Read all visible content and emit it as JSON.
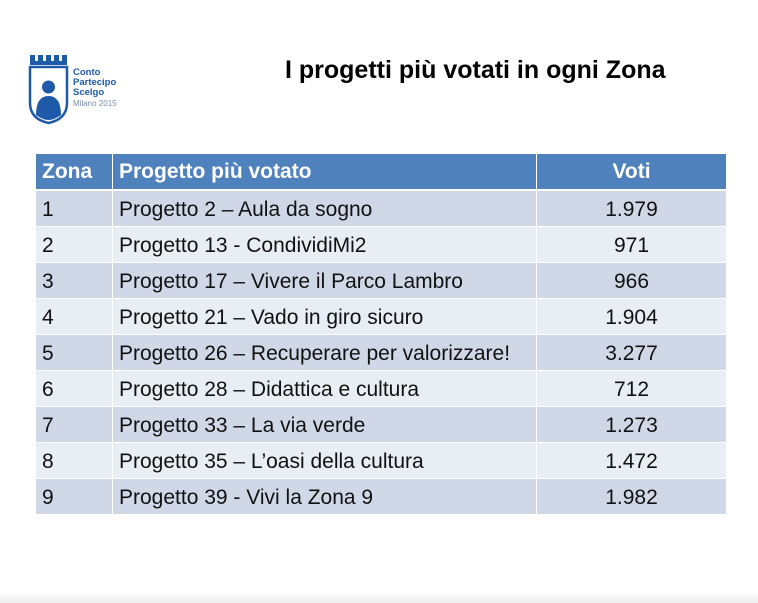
{
  "logo": {
    "line1": "Conto",
    "line2": "Partecipo",
    "line3": "Scelgo",
    "line4": "Milano 2015",
    "icon": "tower-person-shield-icon",
    "color": "#1e5aa8"
  },
  "title": "I progetti più votati in ogni Zona",
  "table": {
    "header_color": "#4f81bd",
    "row_colors": [
      "#d0d8e8",
      "#e9edf4"
    ],
    "columns": [
      "Zona",
      "Progetto più votato",
      "Voti"
    ],
    "rows": [
      {
        "zona": "1",
        "progetto": "Progetto 2 – Aula da sogno",
        "voti": "1.979"
      },
      {
        "zona": "2",
        "progetto": "Progetto 13 - CondividiMi2",
        "voti": "971"
      },
      {
        "zona": "3",
        "progetto": "Progetto 17 – Vivere il Parco Lambro",
        "voti": "966"
      },
      {
        "zona": "4",
        "progetto": "Progetto 21 – Vado in giro sicuro",
        "voti": "1.904"
      },
      {
        "zona": "5",
        "progetto": "Progetto 26 – Recuperare per valorizzare!",
        "voti": "3.277"
      },
      {
        "zona": "6",
        "progetto": "Progetto 28 – Didattica e cultura",
        "voti": "712"
      },
      {
        "zona": "7",
        "progetto": "Progetto 33 – La via verde",
        "voti": "1.273"
      },
      {
        "zona": "8",
        "progetto": "Progetto 35 – L’oasi della cultura",
        "voti": "1.472"
      },
      {
        "zona": "9",
        "progetto": "Progetto 39 - Vivi la Zona 9",
        "voti": "1.982"
      }
    ]
  }
}
